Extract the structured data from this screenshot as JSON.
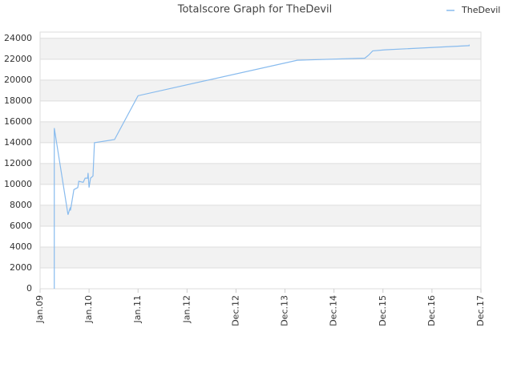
{
  "chart_data": {
    "type": "line",
    "title": "Totalscore Graph for TheDevil",
    "x": [
      0.29,
      0.29,
      0.57,
      0.61,
      0.62,
      0.69,
      0.77,
      0.79,
      0.88,
      0.92,
      0.97,
      0.98,
      1.0,
      1.03,
      1.08,
      1.11,
      1.52,
      2.0,
      5.25,
      6.63,
      6.71,
      6.79,
      7.04,
      8.76,
      8.76
    ],
    "series": [
      {
        "name": "TheDevil",
        "color": "#88bbee",
        "values": [
          0,
          15400,
          7100,
          7700,
          7500,
          9500,
          9700,
          10300,
          10200,
          10600,
          10600,
          11100,
          9700,
          10600,
          10800,
          14000,
          14300,
          18500,
          21900,
          22100,
          22400,
          22800,
          22900,
          23300,
          23400
        ]
      }
    ],
    "xlim": [
      0,
      9
    ],
    "xticks": [
      {
        "value": 0,
        "label": "Jan.09"
      },
      {
        "value": 1,
        "label": "Jan.10"
      },
      {
        "value": 2,
        "label": "Jan.11"
      },
      {
        "value": 3,
        "label": "Jan.12"
      },
      {
        "value": 4,
        "label": "Dec.12"
      },
      {
        "value": 5,
        "label": "Dec.13"
      },
      {
        "value": 6,
        "label": "Dec.14"
      },
      {
        "value": 7,
        "label": "Dec.15"
      },
      {
        "value": 8,
        "label": "Dec.16"
      },
      {
        "value": 9,
        "label": "Dec.17"
      }
    ],
    "ylim": [
      0,
      24600
    ],
    "yticks": [
      0,
      2000,
      4000,
      6000,
      8000,
      10000,
      12000,
      14000,
      16000,
      18000,
      20000,
      22000,
      24000
    ],
    "grid": true,
    "legend": "top-right"
  }
}
